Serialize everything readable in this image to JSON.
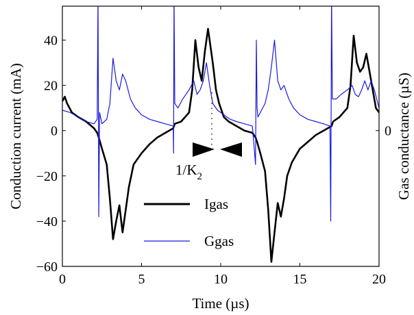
{
  "chart_data": {
    "type": "line",
    "xlabel": "Time (µs)",
    "ylabel": "Conduction current (mA)",
    "ylabel_right": "Gas conductance (µS)",
    "xlim": [
      0,
      20
    ],
    "ylim": [
      -60,
      55
    ],
    "x_ticks": [
      0,
      5,
      10,
      15,
      20
    ],
    "y_ticks": [
      -60,
      -40,
      -20,
      0,
      20,
      40
    ],
    "y_tick_labels": [
      "−60",
      "−40",
      "−20",
      "0",
      "20",
      "40"
    ],
    "y_right_ticks": [
      0
    ],
    "y_right_tick_labels": [
      "0"
    ],
    "grid": false,
    "legend_position": "lower-center",
    "annotation": {
      "text_main": "1/K",
      "text_sub": "2",
      "x": 9.5,
      "y": -12
    },
    "series": [
      {
        "name": "Igas",
        "color": "#000000",
        "x": [
          0,
          0.15,
          0.3,
          0.6,
          1.0,
          1.5,
          2.0,
          2.2,
          2.3,
          2.5,
          2.8,
          3.0,
          3.2,
          3.4,
          3.6,
          3.8,
          4.0,
          4.2,
          4.5,
          5.0,
          5.5,
          6.0,
          6.5,
          7.0,
          7.1,
          7.5,
          8.0,
          8.2,
          8.4,
          8.6,
          8.8,
          9.0,
          9.2,
          9.5,
          9.7,
          9.9,
          10.2,
          10.5,
          11.0,
          11.5,
          12.0,
          12.2,
          12.3,
          12.5,
          12.8,
          13.0,
          13.2,
          13.4,
          13.6,
          13.8,
          14.0,
          14.2,
          14.5,
          15.0,
          15.5,
          16.0,
          16.5,
          17.0,
          17.1,
          17.5,
          18.0,
          18.2,
          18.4,
          18.6,
          18.8,
          19.0,
          19.2,
          19.5,
          19.8,
          20.0
        ],
        "y": [
          13,
          15,
          12,
          8,
          6,
          4,
          1,
          -1,
          -3,
          -8,
          -15,
          -30,
          -48,
          -40,
          -33,
          -45,
          -35,
          -25,
          -15,
          -10,
          -6,
          -3,
          -1,
          1,
          3,
          4,
          8,
          18,
          40,
          28,
          22,
          35,
          45,
          30,
          18,
          12,
          6,
          4,
          2,
          0,
          -1,
          -3,
          -5,
          -10,
          -18,
          -35,
          -58,
          -45,
          -32,
          -38,
          -30,
          -20,
          -14,
          -8,
          -5,
          -2,
          0,
          2,
          4,
          6,
          10,
          20,
          42,
          30,
          26,
          28,
          34,
          22,
          10,
          8
        ]
      },
      {
        "name": "Ggas",
        "color": "#1a1adb",
        "x": [
          0,
          0.5,
          1.0,
          1.5,
          2.0,
          2.2,
          2.25,
          2.3,
          2.35,
          2.5,
          2.8,
          3.0,
          3.2,
          3.4,
          3.6,
          3.8,
          4.0,
          4.3,
          4.6,
          5.0,
          5.5,
          6.0,
          6.5,
          7.0,
          7.02,
          7.05,
          7.1,
          7.3,
          7.6,
          8.0,
          8.3,
          8.5,
          8.7,
          8.9,
          9.1,
          9.3,
          9.5,
          9.8,
          10.2,
          10.6,
          11.0,
          11.5,
          12.0,
          12.2,
          12.25,
          12.3,
          12.35,
          12.5,
          12.8,
          13.0,
          13.2,
          13.4,
          13.6,
          13.8,
          14.0,
          14.3,
          14.6,
          15.0,
          15.5,
          16.0,
          16.5,
          16.9,
          16.95,
          17.0,
          17.05,
          17.3,
          17.6,
          18.0,
          18.3,
          18.5,
          18.7,
          18.9,
          19.1,
          19.3,
          19.5,
          19.7,
          20.0
        ],
        "y": [
          9,
          8,
          6,
          4,
          3,
          5,
          60,
          -38,
          8,
          3,
          5,
          12,
          32,
          22,
          18,
          25,
          22,
          14,
          10,
          7,
          5,
          4,
          3,
          2,
          -10,
          60,
          12,
          10,
          14,
          18,
          22,
          16,
          18,
          22,
          30,
          20,
          12,
          9,
          7,
          5,
          4,
          3,
          2,
          -15,
          40,
          10,
          6,
          8,
          12,
          18,
          28,
          40,
          22,
          18,
          20,
          14,
          10,
          7,
          5,
          4,
          3,
          2,
          -40,
          60,
          14,
          14,
          16,
          18,
          20,
          16,
          15,
          18,
          22,
          18,
          22,
          18,
          10
        ]
      }
    ]
  }
}
